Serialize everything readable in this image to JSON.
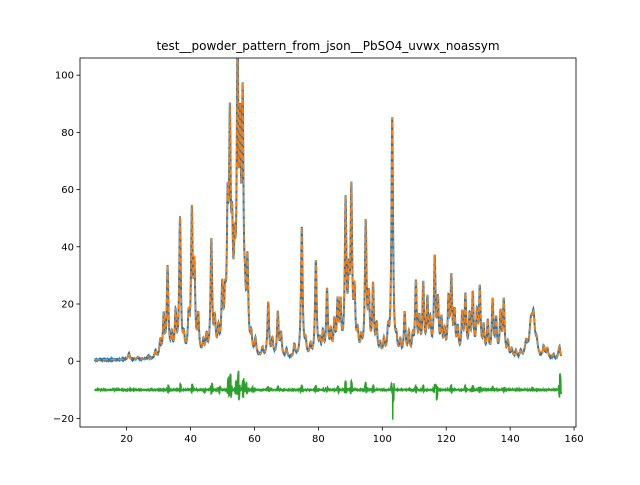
{
  "chart_data": {
    "type": "line",
    "title": "test__powder_pattern_from_json__PbSO4_uvwx_noassym",
    "xlabel": "",
    "ylabel": "",
    "xlim": [
      5.4,
      160.6
    ],
    "ylim": [
      -23.0,
      106.0
    ],
    "x_ticks": [
      20,
      40,
      60,
      80,
      100,
      120,
      140,
      160
    ],
    "y_ticks": [
      -20,
      0,
      20,
      40,
      60,
      80,
      100
    ],
    "grid": false,
    "legend": "none",
    "x_range": [
      10,
      156
    ],
    "colors": [
      "#1f77b4",
      "#ff7f0e",
      "#2ca02c"
    ],
    "background": 0.4,
    "peaks": [
      [
        20.7,
        2.3,
        0.3
      ],
      [
        23.4,
        0.8,
        0.3
      ],
      [
        26.7,
        0.9,
        0.3
      ],
      [
        29.0,
        2.7,
        0.3
      ],
      [
        30.5,
        5.5,
        0.3
      ],
      [
        31.6,
        14.0,
        0.3
      ],
      [
        32.8,
        31.0,
        0.3
      ],
      [
        34.1,
        7.0,
        0.3
      ],
      [
        35.3,
        14.5,
        0.3
      ],
      [
        36.7,
        48.0,
        0.3
      ],
      [
        37.9,
        6.0,
        0.3
      ],
      [
        39.4,
        12.0,
        0.3
      ],
      [
        40.4,
        48.5,
        0.3
      ],
      [
        41.2,
        28.0,
        0.3
      ],
      [
        42.4,
        13.0,
        0.3
      ],
      [
        44.0,
        5.0,
        0.3
      ],
      [
        45.0,
        6.5,
        0.3
      ],
      [
        46.5,
        40.0,
        0.3
      ],
      [
        47.6,
        11.0,
        0.3
      ],
      [
        48.7,
        8.0,
        0.3
      ],
      [
        49.9,
        22.0,
        0.3
      ],
      [
        50.8,
        15.0,
        0.3
      ],
      [
        51.6,
        44.0,
        0.3
      ],
      [
        52.3,
        73.0,
        0.3
      ],
      [
        53.0,
        33.0,
        0.3
      ],
      [
        53.8,
        26.0,
        0.3
      ],
      [
        54.7,
        99.5,
        0.3
      ],
      [
        55.5,
        64.0,
        0.3
      ],
      [
        56.3,
        81.0,
        0.3
      ],
      [
        57.0,
        12.0,
        0.3
      ],
      [
        57.8,
        30.0,
        0.3
      ],
      [
        59.0,
        6.0,
        0.3
      ],
      [
        60.3,
        5.5,
        0.3
      ],
      [
        62.5,
        3.0,
        0.3
      ],
      [
        64.3,
        19.0,
        0.3
      ],
      [
        65.6,
        6.0,
        0.3
      ],
      [
        67.3,
        15.5,
        0.3
      ],
      [
        68.3,
        8.0,
        0.3
      ],
      [
        70.0,
        3.0,
        0.3
      ],
      [
        72.5,
        4.5,
        0.3
      ],
      [
        74.8,
        45.5,
        0.3
      ],
      [
        76.0,
        5.0,
        0.3
      ],
      [
        77.5,
        4.0,
        0.3
      ],
      [
        79.2,
        33.5,
        0.3
      ],
      [
        80.4,
        5.0,
        0.3
      ],
      [
        81.4,
        8.0,
        0.3
      ],
      [
        82.7,
        23.0,
        0.3
      ],
      [
        83.9,
        8.0,
        0.3
      ],
      [
        85.0,
        11.0,
        0.3
      ],
      [
        86.0,
        17.5,
        0.3
      ],
      [
        86.9,
        17.0,
        0.3
      ],
      [
        88.5,
        52.5,
        0.3
      ],
      [
        89.5,
        22.0,
        0.3
      ],
      [
        90.3,
        55.5,
        0.3
      ],
      [
        91.3,
        20.0,
        0.3
      ],
      [
        92.3,
        7.0,
        0.3
      ],
      [
        93.4,
        5.0,
        0.3
      ],
      [
        94.8,
        46.0,
        0.3
      ],
      [
        95.8,
        19.0,
        0.3
      ],
      [
        97.1,
        24.0,
        0.3
      ],
      [
        98.2,
        10.0,
        0.3
      ],
      [
        99.3,
        4.0,
        0.3
      ],
      [
        100.5,
        5.5,
        0.3
      ],
      [
        101.8,
        8.0,
        0.3
      ],
      [
        103.1,
        83.5,
        0.3
      ],
      [
        104.4,
        5.0,
        0.3
      ],
      [
        105.6,
        5.0,
        0.3
      ],
      [
        107.0,
        15.0,
        0.3
      ],
      [
        108.3,
        8.0,
        0.3
      ],
      [
        109.5,
        6.0,
        0.3
      ],
      [
        110.5,
        25.5,
        0.3
      ],
      [
        111.6,
        12.0,
        0.3
      ],
      [
        112.8,
        24.5,
        0.3
      ],
      [
        114.1,
        19.0,
        0.3
      ],
      [
        115.0,
        11.0,
        0.3
      ],
      [
        116.4,
        33.5,
        0.3
      ],
      [
        117.4,
        18.0,
        0.3
      ],
      [
        118.5,
        12.0,
        0.3
      ],
      [
        119.5,
        8.0,
        0.3
      ],
      [
        120.7,
        18.5,
        0.3
      ],
      [
        121.6,
        26.0,
        0.3
      ],
      [
        122.6,
        14.0,
        0.3
      ],
      [
        123.6,
        9.0,
        0.3
      ],
      [
        125.0,
        14.0,
        0.3
      ],
      [
        126.0,
        20.5,
        0.3
      ],
      [
        127.3,
        13.0,
        0.3
      ],
      [
        128.3,
        21.0,
        0.3
      ],
      [
        129.6,
        14.0,
        0.3
      ],
      [
        130.5,
        23.0,
        0.3
      ],
      [
        131.7,
        10.0,
        0.3
      ],
      [
        133.0,
        12.0,
        0.3
      ],
      [
        134.5,
        19.5,
        0.3
      ],
      [
        135.6,
        12.5,
        0.3
      ],
      [
        137.0,
        15.0,
        0.3
      ],
      [
        138.0,
        19.5,
        0.3
      ],
      [
        139.3,
        5.0,
        0.3
      ],
      [
        140.5,
        3.0,
        0.3
      ],
      [
        141.8,
        2.5,
        0.3
      ],
      [
        143.3,
        2.5,
        0.3
      ],
      [
        145.0,
        5.0,
        0.5
      ],
      [
        146.5,
        11.0,
        0.55
      ],
      [
        147.3,
        13.0,
        0.5
      ],
      [
        148.3,
        4.5,
        0.4
      ],
      [
        150.5,
        4.0,
        0.35
      ],
      [
        151.6,
        3.5,
        0.35
      ],
      [
        153.5,
        1.5,
        0.3
      ],
      [
        155.4,
        4.5,
        0.35
      ]
    ],
    "difference_offset": -10.0,
    "difference_features": [
      [
        33.0,
        1.5
      ],
      [
        36.8,
        2.0
      ],
      [
        40.5,
        2.0
      ],
      [
        44.5,
        -1.0
      ],
      [
        46.6,
        2.5
      ],
      [
        49.0,
        1.5
      ],
      [
        51.8,
        4.0
      ],
      [
        52.5,
        5.5
      ],
      [
        54.2,
        3.0
      ],
      [
        55.0,
        6.5
      ],
      [
        56.5,
        4.5
      ],
      [
        57.5,
        2.5
      ],
      [
        59.5,
        1.0
      ],
      [
        64.3,
        1.0
      ],
      [
        67.3,
        1.0
      ],
      [
        74.8,
        1.5
      ],
      [
        79.2,
        1.5
      ],
      [
        82.7,
        1.0
      ],
      [
        86.2,
        1.5
      ],
      [
        88.5,
        3.0
      ],
      [
        90.3,
        3.0
      ],
      [
        94.8,
        2.5
      ],
      [
        97.1,
        1.5
      ],
      [
        103.1,
        6.0
      ],
      [
        103.3,
        -7.5
      ],
      [
        110.5,
        1.5
      ],
      [
        112.8,
        1.5
      ],
      [
        116.4,
        2.0
      ],
      [
        117.0,
        -3.5
      ],
      [
        121.6,
        1.5
      ],
      [
        126.0,
        1.5
      ],
      [
        128.3,
        1.5
      ],
      [
        130.5,
        1.5
      ],
      [
        134.5,
        1.0
      ],
      [
        138.0,
        1.0
      ],
      [
        147.0,
        0.8
      ],
      [
        155.6,
        5.5
      ]
    ],
    "series": [
      {
        "role": "observed"
      },
      {
        "role": "calculated"
      },
      {
        "role": "difference"
      }
    ]
  }
}
